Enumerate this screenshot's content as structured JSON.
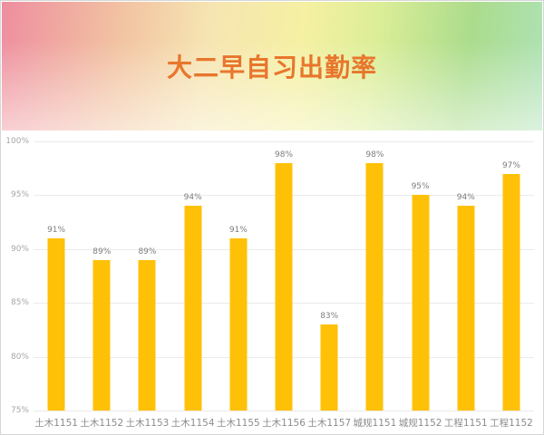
{
  "header": {
    "title": "大二早自习出勤率",
    "title_color": "#e8762c",
    "banner_gradient": [
      "#ee8e9f",
      "#f2c3a2",
      "#f6e5b2",
      "#f5f0a2",
      "#dcee98",
      "#abdc8c",
      "#aee2b6"
    ]
  },
  "chart_data": {
    "type": "bar",
    "title": "大二早自习出勤率",
    "categories": [
      "土木1151",
      "土木1152",
      "土木1153",
      "土木1154",
      "土木1155",
      "土木1156",
      "土木1157",
      "城规1151",
      "城规1152",
      "工程1151",
      "工程1152"
    ],
    "values": [
      91,
      89,
      89,
      94,
      91,
      98,
      83,
      98,
      95,
      94,
      97
    ],
    "value_labels": [
      "91%",
      "89%",
      "89%",
      "94%",
      "91%",
      "98%",
      "83%",
      "98%",
      "95%",
      "94%",
      "97%"
    ],
    "xlabel": "",
    "ylabel": "",
    "ylim": [
      75,
      100
    ],
    "ytick_labels": [
      "100%",
      "95%",
      "90%",
      "85%",
      "80%",
      "75%"
    ],
    "grid": true,
    "legend": false,
    "bar_color": "#ffc107",
    "gridline_color": "#ebebeb",
    "value_label_color": "#7d7d7d",
    "axis_label_color": "#8c8c8c"
  }
}
